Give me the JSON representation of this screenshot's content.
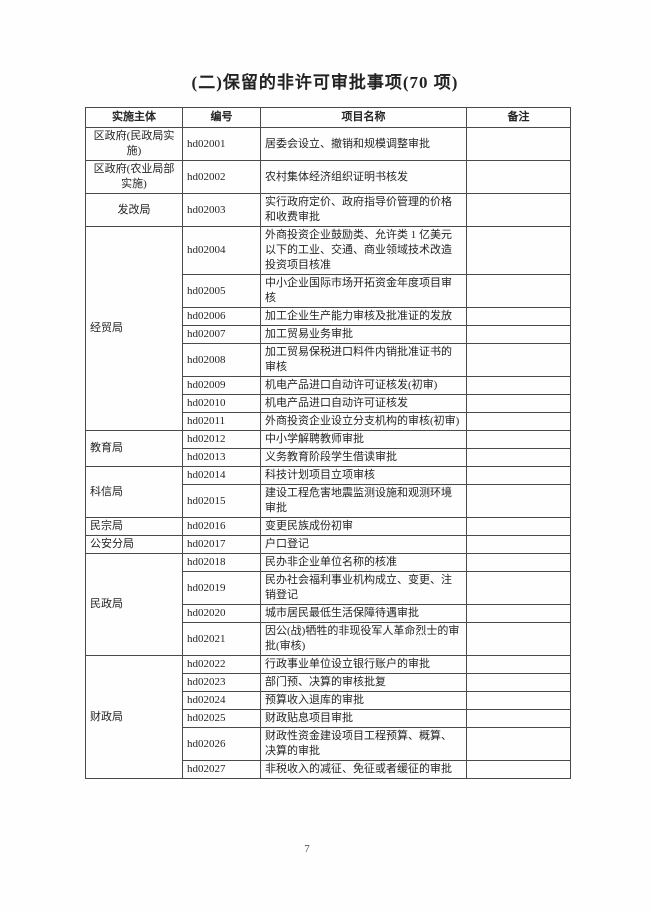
{
  "page": {
    "title": "(二)保留的非许可审批事项(70 项)",
    "page_number": "7"
  },
  "table": {
    "headers": [
      "实施主体",
      "编号",
      "项目名称",
      "备注"
    ],
    "groups": [
      {
        "subject": "区政府(民政局实施)",
        "rows": [
          {
            "code": "hd02001",
            "name": "居委会设立、撤销和规模调整审批",
            "remark": ""
          }
        ]
      },
      {
        "subject": "区政府(农业局部实施)",
        "rows": [
          {
            "code": "hd02002",
            "name": "农村集体经济组织证明书核发",
            "remark": ""
          }
        ]
      },
      {
        "subject": "发改局",
        "rows": [
          {
            "code": "hd02003",
            "name": "实行政府定价、政府指导价管理的价格和收费审批",
            "remark": ""
          }
        ]
      },
      {
        "subject": "经贸局",
        "rows": [
          {
            "code": "hd02004",
            "name": "外商投资企业鼓励类、允许类 1 亿美元以下的工业、交通、商业领域技术改造投资项目核准",
            "remark": ""
          },
          {
            "code": "hd02005",
            "name": "中小企业国际市场开拓资金年度项目审核",
            "remark": ""
          },
          {
            "code": "hd02006",
            "name": "加工企业生产能力审核及批准证的发放",
            "remark": ""
          },
          {
            "code": "hd02007",
            "name": "加工贸易业务审批",
            "remark": ""
          },
          {
            "code": "hd02008",
            "name": "加工贸易保税进口料件内销批准证书的审核",
            "remark": ""
          },
          {
            "code": "hd02009",
            "name": "机电产品进口自动许可证核发(初审)",
            "remark": ""
          },
          {
            "code": "hd02010",
            "name": "机电产品进口自动许可证核发",
            "remark": ""
          },
          {
            "code": "hd02011",
            "name": "外商投资企业设立分支机构的审核(初审)",
            "remark": ""
          }
        ]
      },
      {
        "subject": "教育局",
        "rows": [
          {
            "code": "hd02012",
            "name": "中小学解聘教师审批",
            "remark": ""
          },
          {
            "code": "hd02013",
            "name": "义务教育阶段学生借读审批",
            "remark": ""
          }
        ]
      },
      {
        "subject": "科信局",
        "rows": [
          {
            "code": "hd02014",
            "name": "科技计划项目立项审核",
            "remark": ""
          },
          {
            "code": "hd02015",
            "name": "建设工程危害地震监测设施和观测环境审批",
            "remark": ""
          }
        ]
      },
      {
        "subject": "民宗局",
        "rows": [
          {
            "code": "hd02016",
            "name": "变更民族成份初审",
            "remark": ""
          }
        ]
      },
      {
        "subject": "公安分局",
        "rows": [
          {
            "code": "hd02017",
            "name": "户口登记",
            "remark": ""
          }
        ]
      },
      {
        "subject": "民政局",
        "rows": [
          {
            "code": "hd02018",
            "name": "民办非企业单位名称的核准",
            "remark": ""
          },
          {
            "code": "hd02019",
            "name": "民办社会福利事业机构成立、变更、注销登记",
            "remark": ""
          },
          {
            "code": "hd02020",
            "name": "城市居民最低生活保障待遇审批",
            "remark": ""
          },
          {
            "code": "hd02021",
            "name": "因公(战)牺牲的非现役军人革命烈士的审批(审核)",
            "remark": ""
          }
        ]
      },
      {
        "subject": "财政局",
        "rows": [
          {
            "code": "hd02022",
            "name": "行政事业单位设立银行账户的审批",
            "remark": ""
          },
          {
            "code": "hd02023",
            "name": "部门预、决算的审核批复",
            "remark": ""
          },
          {
            "code": "hd02024",
            "name": "预算收入退库的审批",
            "remark": ""
          },
          {
            "code": "hd02025",
            "name": "财政贴息项目审批",
            "remark": ""
          },
          {
            "code": "hd02026",
            "name": "财政性资金建设项目工程预算、概算、决算的审批",
            "remark": ""
          },
          {
            "code": "hd02027",
            "name": "非税收入的减征、免征或者缓征的审批",
            "remark": ""
          }
        ]
      }
    ]
  }
}
